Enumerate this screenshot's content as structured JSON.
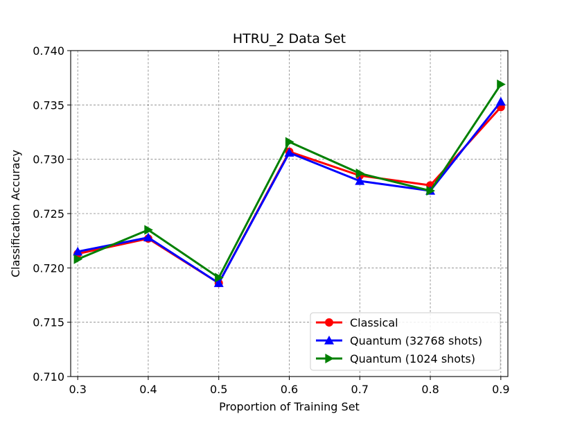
{
  "chart_data": {
    "type": "line",
    "title": "HTRU_2 Data Set",
    "xlabel": "Proportion of Training Set",
    "ylabel": "Classification Accuracy",
    "x": [
      0.3,
      0.4,
      0.5,
      0.6,
      0.7,
      0.8,
      0.9
    ],
    "xlim": [
      0.29,
      0.91
    ],
    "ylim": [
      0.71,
      0.74
    ],
    "xticks": [
      "0.3",
      "0.4",
      "0.5",
      "0.6",
      "0.7",
      "0.8",
      "0.9"
    ],
    "yticks": [
      "0.710",
      "0.715",
      "0.720",
      "0.725",
      "0.730",
      "0.735",
      "0.740"
    ],
    "grid": true,
    "legend_position": "bottom-right",
    "series": [
      {
        "name": "Classical",
        "color": "#ff0000",
        "marker": "circle",
        "values": [
          0.7213,
          0.7227,
          0.7186,
          0.7307,
          0.7285,
          0.7276,
          0.7348
        ]
      },
      {
        "name": "Quantum (32768 shots)",
        "color": "#0000ff",
        "marker": "triangle-up",
        "values": [
          0.7215,
          0.7228,
          0.7186,
          0.7306,
          0.728,
          0.7271,
          0.7353
        ]
      },
      {
        "name": "Quantum (1024 shots)",
        "color": "#008000",
        "marker": "triangle-right",
        "values": [
          0.7208,
          0.7235,
          0.7191,
          0.7316,
          0.7287,
          0.7271,
          0.7369
        ]
      }
    ]
  }
}
